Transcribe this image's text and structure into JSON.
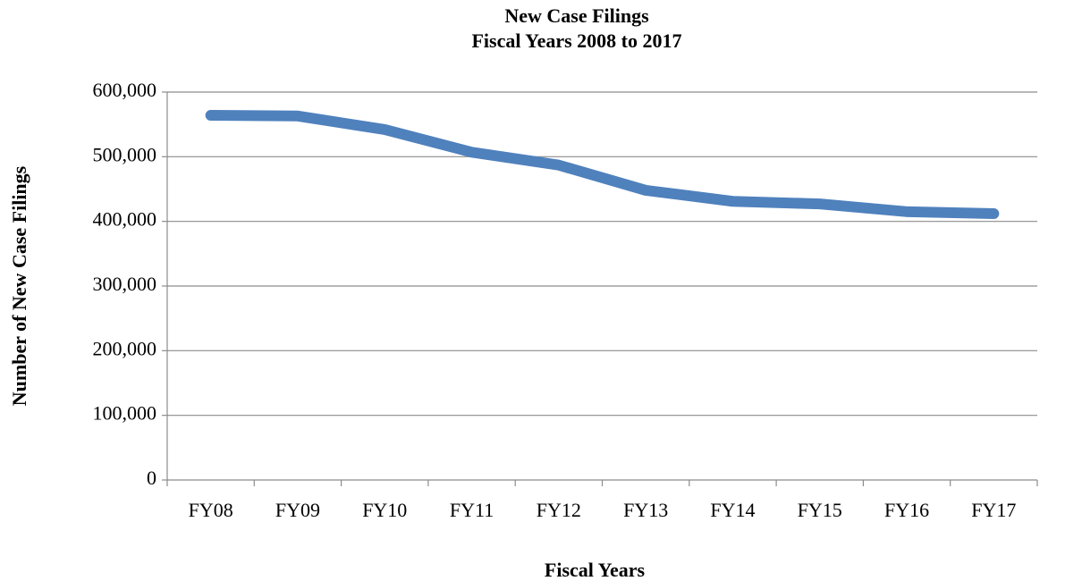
{
  "chart_data": {
    "type": "line",
    "title": "New Case Filings",
    "subtitle": "Fiscal Years 2008 to 2017",
    "x_label": "Fiscal Years",
    "y_label": "Number of New Case Filings",
    "categories": [
      "FY08",
      "FY09",
      "FY10",
      "FY11",
      "FY12",
      "FY13",
      "FY14",
      "FY15",
      "FY16",
      "FY17"
    ],
    "series": [
      {
        "name": "New Case Filings",
        "color": "#4f81bd",
        "values": [
          564000,
          563000,
          542000,
          507000,
          487000,
          448000,
          431000,
          427000,
          415000,
          412000
        ]
      }
    ],
    "ylim": [
      0,
      600000
    ],
    "yticks": [
      0,
      {
        "value": 100000,
        "label": "100,000"
      },
      {
        "value": 200000,
        "label": "200,000"
      },
      {
        "value": 300000,
        "label": "300,000"
      },
      {
        "value": 400000,
        "label": "400,000"
      },
      {
        "value": 500000,
        "label": "500,000"
      },
      {
        "value": 600000,
        "label": "600,000"
      }
    ],
    "grid": true
  }
}
